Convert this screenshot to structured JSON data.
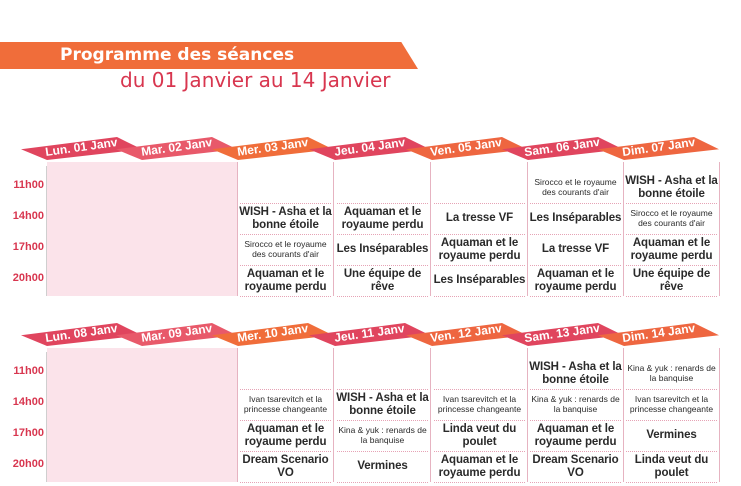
{
  "header": {
    "title": "Programme des séances",
    "subtitle": "du 01 Janvier au 14 Janvier"
  },
  "colors": {
    "orange": "#f06d3a",
    "magenta": "#e0455e",
    "pink_fill": "#fbe3ea",
    "time_red": "#d8364f"
  },
  "times": [
    "11h00",
    "14h00",
    "17h00",
    "20h00"
  ],
  "week1": {
    "days": [
      "Lun. 01 Janv",
      "Mar. 02 Janv",
      "Mer. 03 Janv",
      "Jeu. 04 Janv",
      "Ven. 05 Janv",
      "Sam. 06 Janv",
      "Dim. 07 Janv"
    ],
    "grid": [
      [
        {
          "t": "",
          "s": "big"
        },
        {
          "t": "",
          "s": "big"
        },
        {
          "t": "",
          "s": "big"
        },
        {
          "t": "",
          "s": "big"
        }
      ],
      [
        {
          "t": "",
          "s": "big"
        },
        {
          "t": "",
          "s": "big"
        },
        {
          "t": "",
          "s": "big"
        },
        {
          "t": "",
          "s": "big"
        }
      ],
      [
        {
          "t": "",
          "s": "big"
        },
        {
          "t": "WISH - Asha et la bonne étoile",
          "s": "big"
        },
        {
          "t": "Sirocco et le royaume des courants d'air",
          "s": "small"
        },
        {
          "t": "Aquaman et le royaume perdu",
          "s": "big"
        }
      ],
      [
        {
          "t": "",
          "s": "big"
        },
        {
          "t": "Aquaman et le royaume perdu",
          "s": "big"
        },
        {
          "t": "Les Inséparables",
          "s": "big"
        },
        {
          "t": "Une équipe de rêve",
          "s": "big"
        }
      ],
      [
        {
          "t": "",
          "s": "big"
        },
        {
          "t": "La tresse VF",
          "s": "big"
        },
        {
          "t": "Aquaman et le royaume perdu",
          "s": "big"
        },
        {
          "t": "Les Inséparables",
          "s": "big"
        }
      ],
      [
        {
          "t": "Sirocco et le royaume des courants d'air",
          "s": "small"
        },
        {
          "t": "Les Inséparables",
          "s": "big"
        },
        {
          "t": "La tresse VF",
          "s": "big"
        },
        {
          "t": "Aquaman et le royaume perdu",
          "s": "big"
        }
      ],
      [
        {
          "t": "WISH - Asha et la bonne étoile",
          "s": "big"
        },
        {
          "t": "Sirocco et le royaume des courants d'air",
          "s": "small"
        },
        {
          "t": "Aquaman et le royaume perdu",
          "s": "big"
        },
        {
          "t": "Une équipe de rêve",
          "s": "big"
        }
      ]
    ]
  },
  "week2": {
    "days": [
      "Lun. 08 Janv",
      "Mar. 09 Janv",
      "Mer. 10 Janv",
      "Jeu. 11 Janv",
      "Ven. 12 Janv",
      "Sam. 13 Janv",
      "Dim. 14 Janv"
    ],
    "grid": [
      [
        {
          "t": "",
          "s": "big"
        },
        {
          "t": "",
          "s": "big"
        },
        {
          "t": "",
          "s": "big"
        },
        {
          "t": "",
          "s": "big"
        }
      ],
      [
        {
          "t": "",
          "s": "big"
        },
        {
          "t": "",
          "s": "big"
        },
        {
          "t": "",
          "s": "big"
        },
        {
          "t": "",
          "s": "big"
        }
      ],
      [
        {
          "t": "",
          "s": "big"
        },
        {
          "t": "Ivan tsarevitch et la princesse changeante",
          "s": "small"
        },
        {
          "t": "Aquaman et le royaume perdu",
          "s": "big"
        },
        {
          "t": "Dream Scenario VO",
          "s": "big"
        }
      ],
      [
        {
          "t": "",
          "s": "big"
        },
        {
          "t": "WISH - Asha et la bonne étoile",
          "s": "big"
        },
        {
          "t": "Kina & yuk : renards de la banquise",
          "s": "small"
        },
        {
          "t": "Vermines",
          "s": "big"
        }
      ],
      [
        {
          "t": "",
          "s": "big"
        },
        {
          "t": "Ivan tsarevitch et la princesse changeante",
          "s": "small"
        },
        {
          "t": "Linda veut du poulet",
          "s": "big"
        },
        {
          "t": "Aquaman et le royaume perdu",
          "s": "big"
        }
      ],
      [
        {
          "t": "WISH - Asha et la bonne étoile",
          "s": "big"
        },
        {
          "t": "Kina & yuk : renards de la banquise",
          "s": "small"
        },
        {
          "t": "Aquaman et le royaume perdu",
          "s": "big"
        },
        {
          "t": "Dream Scenario VO",
          "s": "big"
        }
      ],
      [
        {
          "t": "Kina & yuk : renards de la banquise",
          "s": "small"
        },
        {
          "t": "Ivan tsarevitch et la princesse changeante",
          "s": "small"
        },
        {
          "t": "Vermines",
          "s": "big"
        },
        {
          "t": "Linda veut du poulet",
          "s": "big"
        }
      ]
    ]
  }
}
